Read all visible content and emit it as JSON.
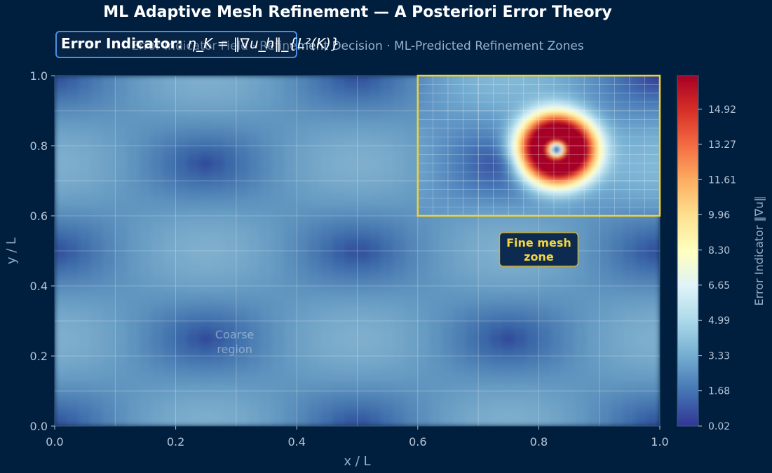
{
  "header": {
    "title": "ML Adaptive Mesh Refinement — A Posteriori Error Theory",
    "subtitle": "Error Indicator Field  ·  Refinement Decision  ·  ML-Predicted Refinement Zones",
    "indicator_label": "Error Indicator:",
    "indicator_formula": "η_K = ‖∇u_h‖_{L²(K)}"
  },
  "chart_data": {
    "type": "heatmap",
    "xlabel": "x / L",
    "ylabel": "y / L",
    "xlim": [
      0,
      1
    ],
    "ylim": [
      0,
      1
    ],
    "x_ticks": [
      "0.0",
      "0.2",
      "0.4",
      "0.6",
      "0.8",
      "1.0"
    ],
    "y_ticks": [
      "0.0",
      "0.2",
      "0.4",
      "0.6",
      "0.8",
      "1.0"
    ],
    "grid": true,
    "colorbar": {
      "label": "Error Indicator ‖∇u‖",
      "ticks": [
        "0.02",
        "1.68",
        "3.33",
        "4.99",
        "6.65",
        "8.30",
        "9.96",
        "11.61",
        "13.27",
        "14.92"
      ],
      "min": 0.02,
      "max": 16.5,
      "colormap": "RdYlBu_r"
    },
    "field": {
      "background_description": "smooth periodic gradient-magnitude pattern, low values (≈0.02–4)",
      "hotspot_center": [
        0.83,
        0.79
      ],
      "hotspot_peak": 16.5
    },
    "refinement_zone": {
      "x_range": [
        0.6,
        1.0
      ],
      "y_range": [
        0.6,
        1.0
      ],
      "fine_grid_step": 0.025,
      "border_color": "#f2d22e"
    },
    "coarse_grid_step": 0.1,
    "annotations": [
      {
        "text": "Fine mesh\nzone",
        "x": 0.8,
        "y": 0.5
      },
      {
        "text": "Coarse\nregion",
        "x": 0.28,
        "y": 0.25
      }
    ]
  },
  "colors": {
    "background": "#001f3f",
    "accent_box": "#4a90e2",
    "zone_border": "#f2d22e",
    "text_muted": "#9bb0c8"
  }
}
